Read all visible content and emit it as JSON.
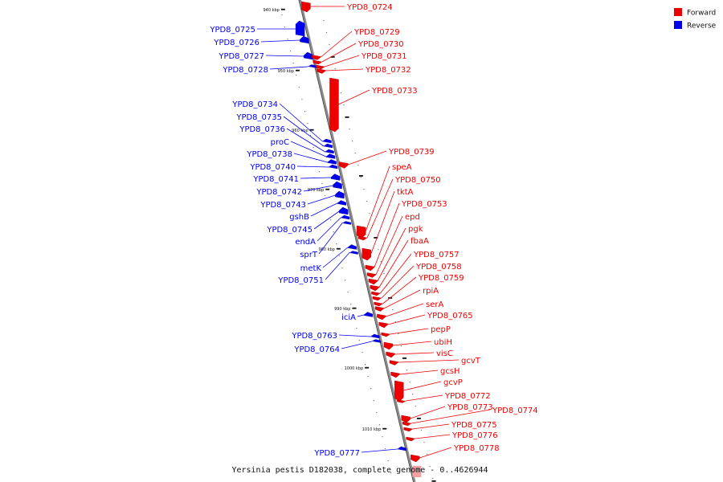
{
  "caption": "Yersinia pestis D182038, complete genome - 0..4626944",
  "legend": [
    {
      "label": "Forward",
      "color": "#ee0000"
    },
    {
      "label": "Reverse",
      "color": "#0000ee"
    }
  ],
  "colors": {
    "forward": "#ee0000",
    "reverse": "#0000ee",
    "backbone": "#8a8a8a"
  },
  "ticks": [
    "940 kbp",
    "950 kbp",
    "960 kbp",
    "970 kbp",
    "980 kbp",
    "990 kbp",
    "1000 kbp",
    "1010 kbp"
  ],
  "genes": [
    {
      "name": "YPD8_0724",
      "strand": "forward"
    },
    {
      "name": "YPD8_0725",
      "strand": "reverse"
    },
    {
      "name": "YPD8_0726",
      "strand": "reverse"
    },
    {
      "name": "YPD8_0727",
      "strand": "reverse"
    },
    {
      "name": "YPD8_0728",
      "strand": "reverse"
    },
    {
      "name": "YPD8_0729",
      "strand": "forward"
    },
    {
      "name": "YPD8_0730",
      "strand": "forward"
    },
    {
      "name": "YPD8_0731",
      "strand": "forward"
    },
    {
      "name": "YPD8_0732",
      "strand": "forward"
    },
    {
      "name": "YPD8_0733",
      "strand": "forward"
    },
    {
      "name": "YPD8_0734",
      "strand": "reverse"
    },
    {
      "name": "YPD8_0735",
      "strand": "reverse"
    },
    {
      "name": "YPD8_0736",
      "strand": "reverse"
    },
    {
      "name": "proC",
      "strand": "reverse"
    },
    {
      "name": "YPD8_0738",
      "strand": "reverse"
    },
    {
      "name": "YPD8_0739",
      "strand": "forward"
    },
    {
      "name": "YPD8_0740",
      "strand": "reverse"
    },
    {
      "name": "YPD8_0741",
      "strand": "reverse"
    },
    {
      "name": "YPD8_0742",
      "strand": "reverse"
    },
    {
      "name": "YPD8_0743",
      "strand": "reverse"
    },
    {
      "name": "gshB",
      "strand": "reverse"
    },
    {
      "name": "YPD8_0745",
      "strand": "reverse"
    },
    {
      "name": "endA",
      "strand": "reverse"
    },
    {
      "name": "sprT",
      "strand": "reverse"
    },
    {
      "name": "metK",
      "strand": "reverse"
    },
    {
      "name": "YPD8_0751",
      "strand": "reverse"
    },
    {
      "name": "speA",
      "strand": "forward"
    },
    {
      "name": "YPD8_0750",
      "strand": "forward"
    },
    {
      "name": "tktA",
      "strand": "forward"
    },
    {
      "name": "YPD8_0753",
      "strand": "forward"
    },
    {
      "name": "epd",
      "strand": "forward"
    },
    {
      "name": "pgk",
      "strand": "forward"
    },
    {
      "name": "fbaA",
      "strand": "forward"
    },
    {
      "name": "YPD8_0757",
      "strand": "forward"
    },
    {
      "name": "YPD8_0758",
      "strand": "forward"
    },
    {
      "name": "YPD8_0759",
      "strand": "forward"
    },
    {
      "name": "rpiA",
      "strand": "forward"
    },
    {
      "name": "serA",
      "strand": "forward"
    },
    {
      "name": "iciA",
      "strand": "reverse"
    },
    {
      "name": "YPD8_0765",
      "strand": "forward"
    },
    {
      "name": "pepP",
      "strand": "forward"
    },
    {
      "name": "YPD8_0763",
      "strand": "reverse"
    },
    {
      "name": "YPD8_0764",
      "strand": "reverse"
    },
    {
      "name": "ubiH",
      "strand": "forward"
    },
    {
      "name": "visC",
      "strand": "forward"
    },
    {
      "name": "gcvT",
      "strand": "forward"
    },
    {
      "name": "gcsH",
      "strand": "forward"
    },
    {
      "name": "gcvP",
      "strand": "forward"
    },
    {
      "name": "YPD8_0772",
      "strand": "forward"
    },
    {
      "name": "YPD8_0773",
      "strand": "forward"
    },
    {
      "name": "YPD8_0774",
      "strand": "forward"
    },
    {
      "name": "YPD8_0775",
      "strand": "forward"
    },
    {
      "name": "YPD8_0776",
      "strand": "forward"
    },
    {
      "name": "YPD8_0777",
      "strand": "reverse"
    },
    {
      "name": "YPD8_0778",
      "strand": "forward"
    }
  ]
}
